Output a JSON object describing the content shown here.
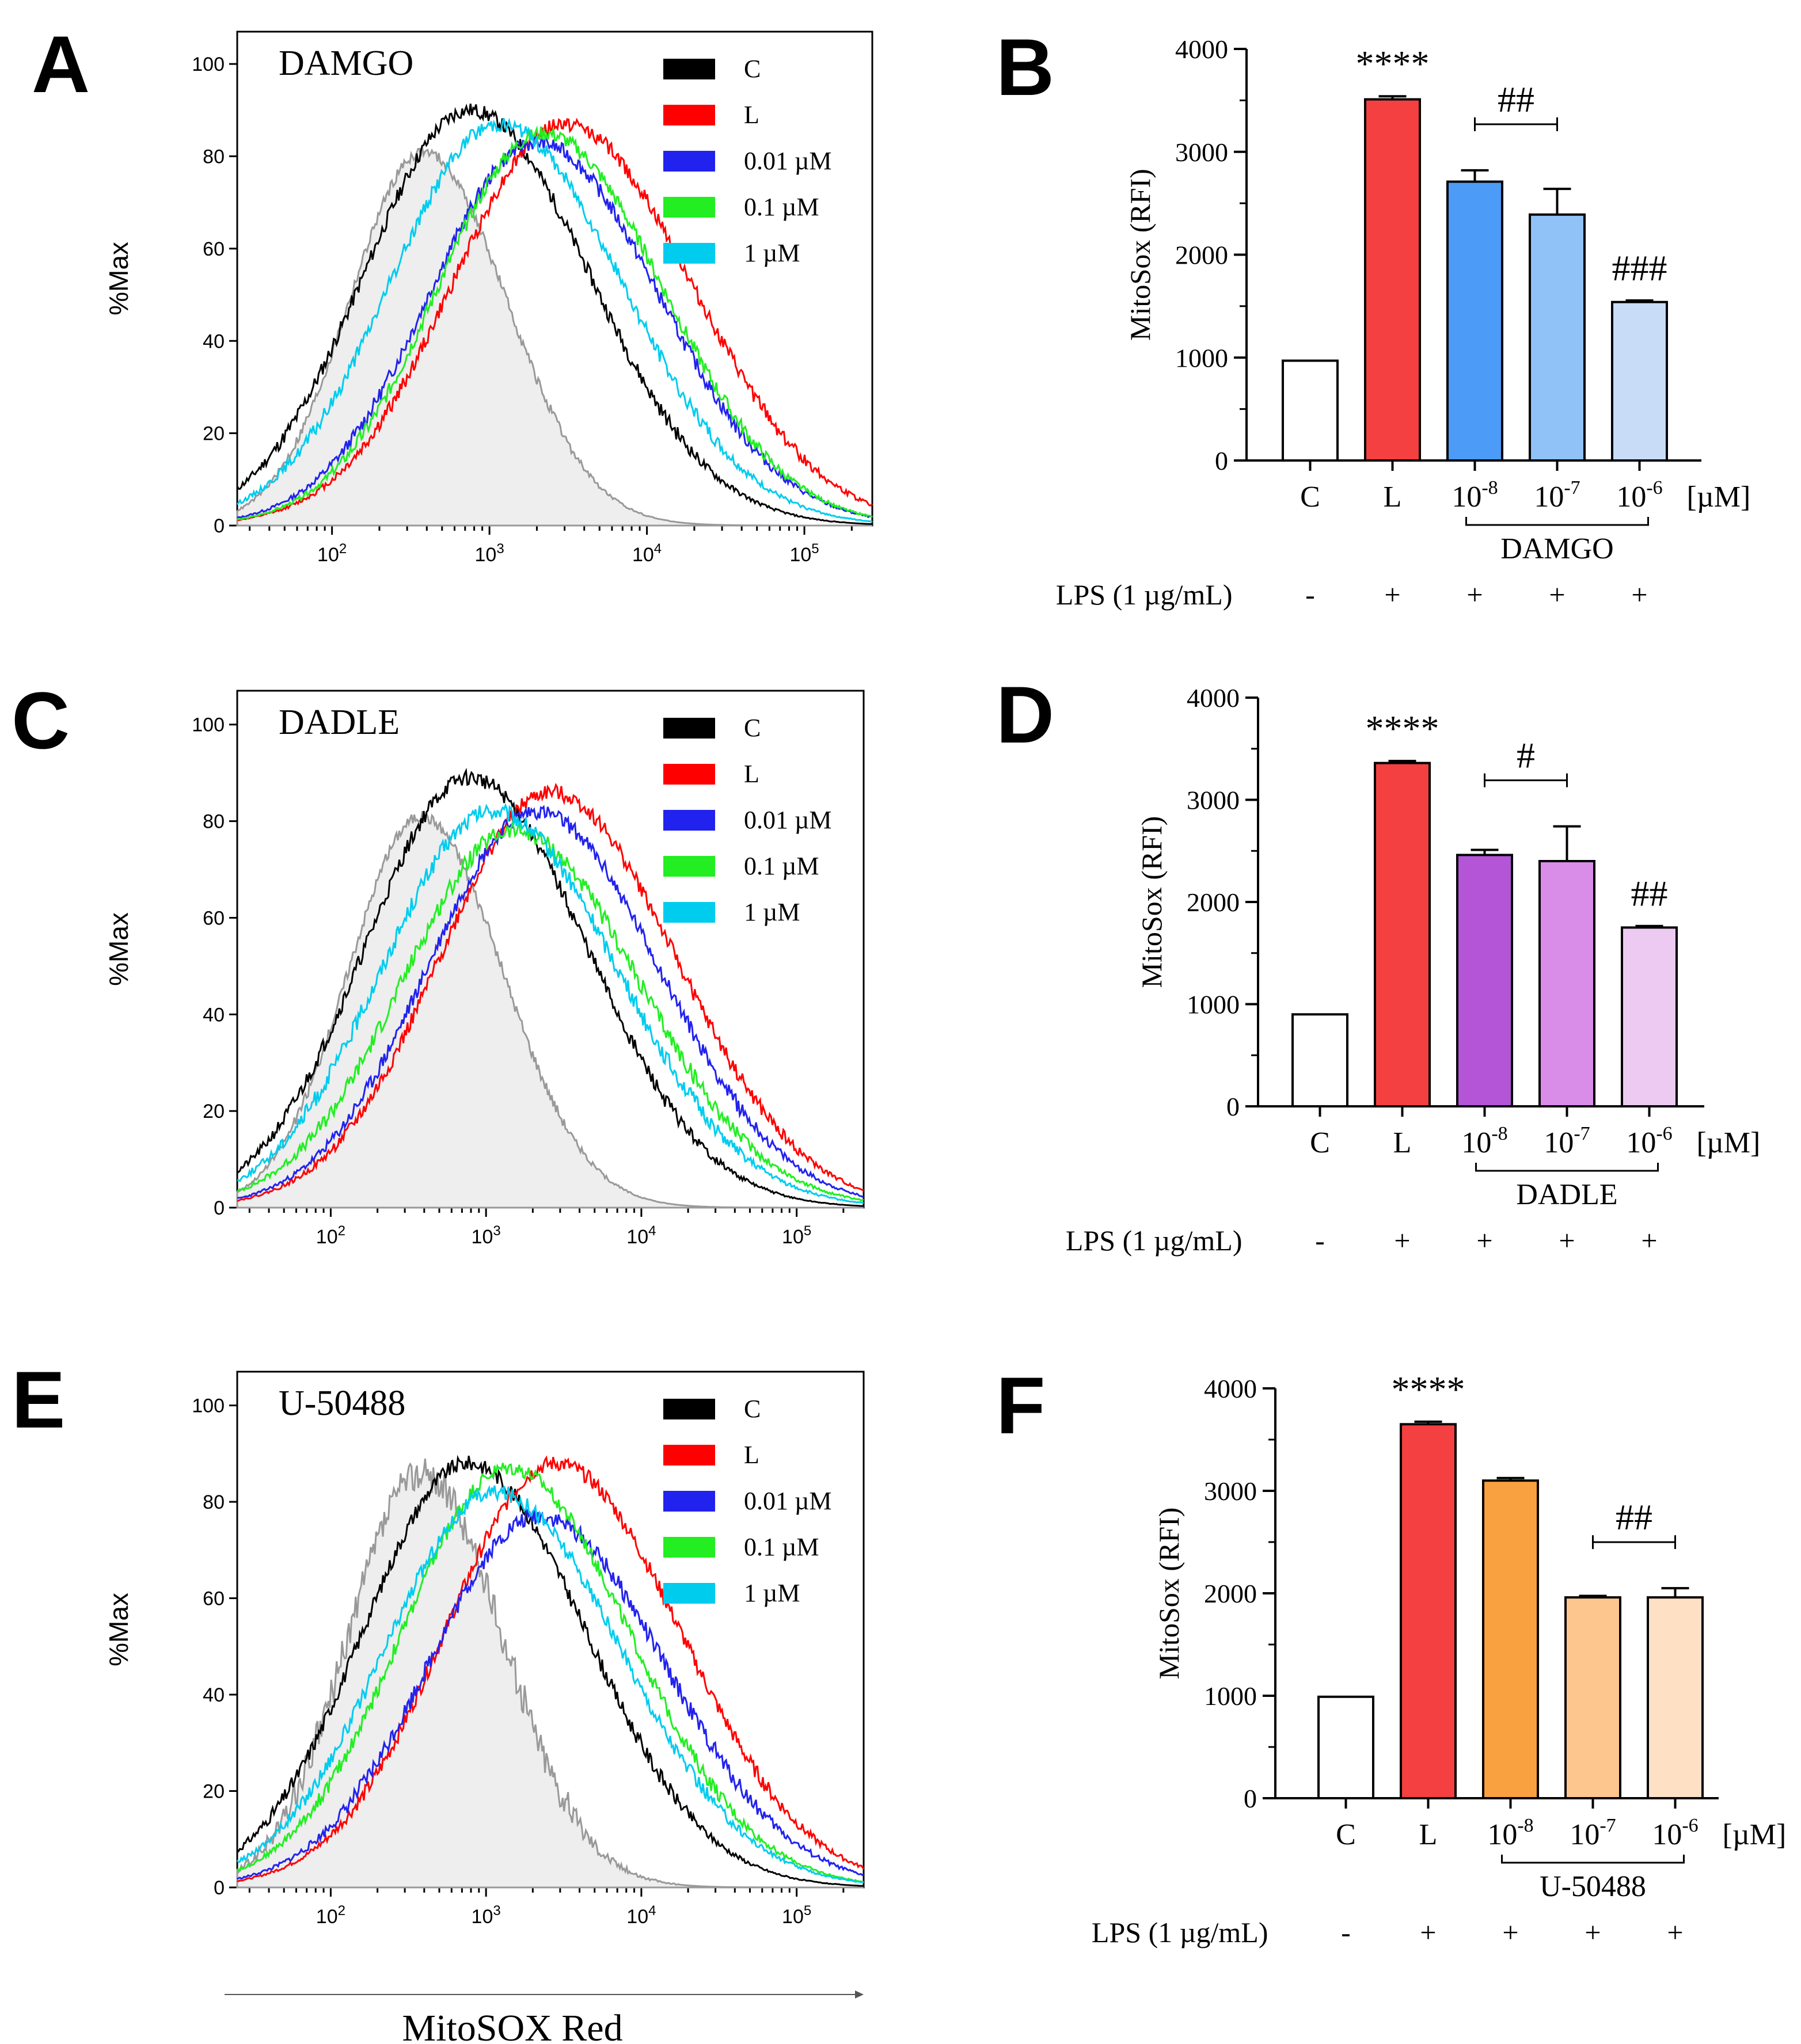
{
  "figure": {
    "x_axis_title": "MitoSOX Red"
  },
  "chart_data": [
    {
      "id": "A",
      "type": "line",
      "panel_label": "A",
      "title": "DAMGO",
      "ylabel": "%Max",
      "xlabel": "MitoSOX Red",
      "xscale": "log",
      "xlim": [
        25,
        270000
      ],
      "ylim": [
        0,
        107
      ],
      "yticks": [
        "0",
        "20",
        "40",
        "60",
        "80",
        "100"
      ],
      "xticks": [
        {
          "base": "10",
          "exp": "2"
        },
        {
          "base": "10",
          "exp": "3"
        },
        {
          "base": "10",
          "exp": "4"
        },
        {
          "base": "10",
          "exp": "5"
        }
      ],
      "legend_position": "top-right",
      "series": [
        {
          "name": "C",
          "color": "#000000",
          "peak_x": 750,
          "peak_y": 90,
          "width": 0.72,
          "jitter": 1.6,
          "seed": 11
        },
        {
          "name": "L",
          "color": "#ff0000",
          "peak_x": 3000,
          "peak_y": 87,
          "width": 0.76,
          "jitter": 1.6,
          "seed": 12
        },
        {
          "name": "0.01 µM",
          "color": "#2222ee",
          "peak_x": 2000,
          "peak_y": 83,
          "width": 0.73,
          "jitter": 1.6,
          "seed": 13
        },
        {
          "name": "0.1 µM",
          "color": "#22ee22",
          "peak_x": 2200,
          "peak_y": 85,
          "width": 0.72,
          "jitter": 1.6,
          "seed": 14
        },
        {
          "name": "1 µM",
          "color": "#00ccee",
          "peak_x": 1150,
          "peak_y": 87,
          "width": 0.74,
          "jitter": 1.6,
          "seed": 15
        }
      ],
      "unstained": {
        "color": "#999999",
        "fill": "#eeeeee",
        "peak_x": 380,
        "peak_y": 81,
        "width": 0.5,
        "jitter": 1.2,
        "seed": 16
      }
    },
    {
      "id": "B",
      "type": "bar",
      "panel_label": "B",
      "ylabel": "MitoSox (RFI)",
      "ylim": [
        0,
        4000
      ],
      "yticks": [
        "0",
        "1000",
        "2000",
        "3000",
        "4000"
      ],
      "categories": [
        "C",
        "L",
        "10",
        "10",
        "10"
      ],
      "category_exponents": [
        "",
        "",
        "-8",
        "-7",
        "-6"
      ],
      "unit": "[µM]",
      "values": [
        970,
        3510,
        2710,
        2390,
        1540
      ],
      "errors": [
        5,
        30,
        110,
        250,
        15
      ],
      "colors": [
        "#ffffff",
        "#f44040",
        "#4b9bf7",
        "#90c1f7",
        "#c8dcf7"
      ],
      "drug": "DAMGO",
      "significance": [
        {
          "text": "****",
          "bar": 1
        },
        {
          "text": "##",
          "bracket": [
            2,
            3
          ]
        },
        {
          "text": "###",
          "bar": 4
        }
      ],
      "lps_label": "LPS (1 µg/mL)",
      "lps_signs": [
        "-",
        "+",
        "+",
        "+",
        "+"
      ]
    },
    {
      "id": "C",
      "type": "line",
      "panel_label": "C",
      "title": "DADLE",
      "ylabel": "%Max",
      "xscale": "log",
      "xlim": [
        25,
        270000
      ],
      "ylim": [
        0,
        107
      ],
      "yticks": [
        "0",
        "20",
        "40",
        "60",
        "80",
        "100"
      ],
      "xticks": [
        {
          "base": "10",
          "exp": "2"
        },
        {
          "base": "10",
          "exp": "3"
        },
        {
          "base": "10",
          "exp": "4"
        },
        {
          "base": "10",
          "exp": "5"
        }
      ],
      "legend_position": "top-right",
      "series": [
        {
          "name": "C",
          "color": "#000000",
          "peak_x": 780,
          "peak_y": 89,
          "width": 0.72,
          "jitter": 1.6,
          "seed": 21
        },
        {
          "name": "L",
          "color": "#ff0000",
          "peak_x": 2600,
          "peak_y": 86,
          "width": 0.76,
          "jitter": 1.6,
          "seed": 22
        },
        {
          "name": "0.01 µM",
          "color": "#2222ee",
          "peak_x": 2100,
          "peak_y": 82,
          "width": 0.75,
          "jitter": 1.6,
          "seed": 23
        },
        {
          "name": "0.1 µM",
          "color": "#22ee22",
          "peak_x": 1500,
          "peak_y": 78,
          "width": 0.76,
          "jitter": 1.8,
          "seed": 24
        },
        {
          "name": "1 µM",
          "color": "#00ccee",
          "peak_x": 1100,
          "peak_y": 82,
          "width": 0.76,
          "jitter": 1.8,
          "seed": 25
        }
      ],
      "unstained": {
        "color": "#999999",
        "fill": "#eeeeee",
        "peak_x": 380,
        "peak_y": 81,
        "width": 0.5,
        "jitter": 1.2,
        "seed": 26
      }
    },
    {
      "id": "D",
      "type": "bar",
      "panel_label": "D",
      "ylabel": "MitoSox (RFI)",
      "ylim": [
        0,
        4000
      ],
      "yticks": [
        "0",
        "1000",
        "2000",
        "3000",
        "4000"
      ],
      "categories": [
        "C",
        "L",
        "10",
        "10",
        "10"
      ],
      "category_exponents": [
        "",
        "",
        "-8",
        "-7",
        "-6"
      ],
      "unit": "[µM]",
      "values": [
        900,
        3360,
        2460,
        2400,
        1750
      ],
      "errors": [
        5,
        20,
        50,
        340,
        15
      ],
      "colors": [
        "#ffffff",
        "#f44040",
        "#b455d8",
        "#d98ce8",
        "#eccaf2"
      ],
      "drug": "DADLE",
      "significance": [
        {
          "text": "****",
          "bar": 1
        },
        {
          "text": "#",
          "bracket": [
            2,
            3
          ]
        },
        {
          "text": "##",
          "bar": 4
        }
      ],
      "lps_label": "LPS (1 µg/mL)",
      "lps_signs": [
        "-",
        "+",
        "+",
        "+",
        "+"
      ]
    },
    {
      "id": "E",
      "type": "line",
      "panel_label": "E",
      "title": "U-50488",
      "ylabel": "%Max",
      "xscale": "log",
      "xlim": [
        25,
        270000
      ],
      "ylim": [
        0,
        107
      ],
      "yticks": [
        "0",
        "20",
        "40",
        "60",
        "80",
        "100"
      ],
      "xticks": [
        {
          "base": "10",
          "exp": "2"
        },
        {
          "base": "10",
          "exp": "3"
        },
        {
          "base": "10",
          "exp": "4"
        },
        {
          "base": "10",
          "exp": "5"
        }
      ],
      "legend_position": "top-right",
      "series": [
        {
          "name": "C",
          "color": "#000000",
          "peak_x": 760,
          "peak_y": 88,
          "width": 0.72,
          "jitter": 1.6,
          "seed": 31
        },
        {
          "name": "L",
          "color": "#ff0000",
          "peak_x": 2800,
          "peak_y": 88,
          "width": 0.76,
          "jitter": 1.6,
          "seed": 32
        },
        {
          "name": "0.01 µM",
          "color": "#2222ee",
          "peak_x": 2200,
          "peak_y": 77,
          "width": 0.76,
          "jitter": 1.8,
          "seed": 33
        },
        {
          "name": "0.1 µM",
          "color": "#22ee22",
          "peak_x": 1400,
          "peak_y": 87,
          "width": 0.74,
          "jitter": 1.6,
          "seed": 34
        },
        {
          "name": "1 µM",
          "color": "#00ccee",
          "peak_x": 1150,
          "peak_y": 82,
          "width": 0.76,
          "jitter": 1.6,
          "seed": 35
        }
      ],
      "unstained": {
        "color": "#999999",
        "fill": "#eeeeee",
        "peak_x": 380,
        "peak_y": 86,
        "width": 0.5,
        "jitter": 3.5,
        "seed": 36
      }
    },
    {
      "id": "F",
      "type": "bar",
      "panel_label": "F",
      "ylabel": "MitoSox (RFI)",
      "ylim": [
        0,
        4000
      ],
      "yticks": [
        "0",
        "1000",
        "2000",
        "3000",
        "4000"
      ],
      "categories": [
        "C",
        "L",
        "10",
        "10",
        "10"
      ],
      "category_exponents": [
        "",
        "",
        "-8",
        "-7",
        "-6"
      ],
      "unit": "[µM]",
      "values": [
        990,
        3650,
        3100,
        1960,
        1960
      ],
      "errors": [
        5,
        25,
        25,
        15,
        90
      ],
      "colors": [
        "#ffffff",
        "#f44040",
        "#f9a040",
        "#fdc68e",
        "#fee0c5"
      ],
      "drug": "U-50488",
      "significance": [
        {
          "text": "****",
          "bar": 1
        },
        {
          "text": "##",
          "bracket": [
            3,
            4
          ]
        }
      ],
      "lps_label": "LPS (1 µg/mL)",
      "lps_signs": [
        "-",
        "+",
        "+",
        "+",
        "+"
      ]
    }
  ]
}
